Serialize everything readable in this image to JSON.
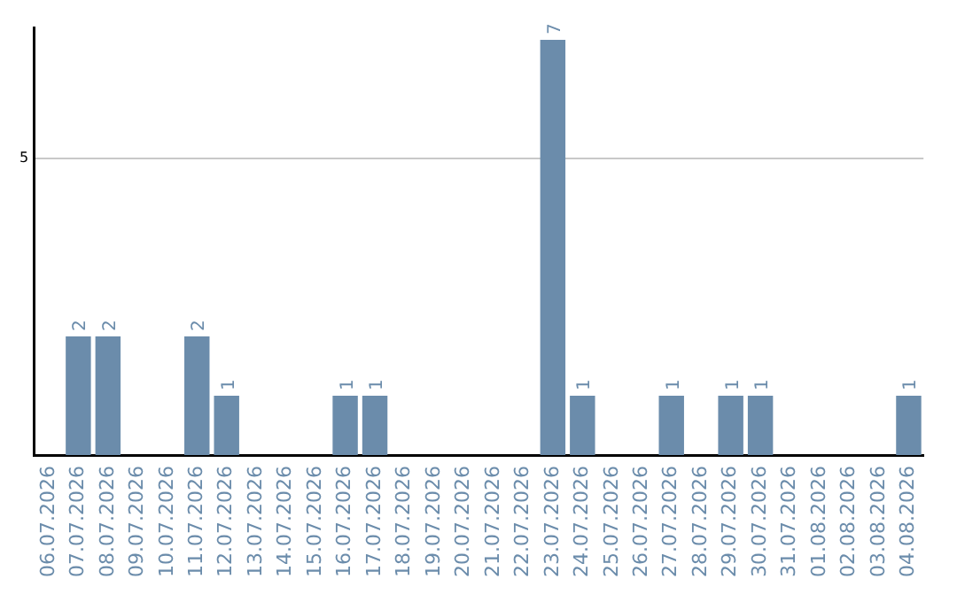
{
  "chart_data": {
    "type": "bar",
    "categories": [
      "06.07.2026",
      "07.07.2026",
      "08.07.2026",
      "09.07.2026",
      "10.07.2026",
      "11.07.2026",
      "12.07.2026",
      "13.07.2026",
      "14.07.2026",
      "15.07.2026",
      "16.07.2026",
      "17.07.2026",
      "18.07.2026",
      "19.07.2026",
      "20.07.2026",
      "21.07.2026",
      "22.07.2026",
      "23.07.2026",
      "24.07.2026",
      "25.07.2026",
      "26.07.2026",
      "27.07.2026",
      "28.07.2026",
      "29.07.2026",
      "30.07.2026",
      "31.07.2026",
      "01.08.2026",
      "02.08.2026",
      "03.08.2026",
      "04.08.2026"
    ],
    "values": [
      0,
      2,
      2,
      0,
      0,
      2,
      1,
      0,
      0,
      0,
      1,
      1,
      0,
      0,
      0,
      0,
      0,
      7,
      1,
      0,
      0,
      1,
      0,
      1,
      1,
      0,
      0,
      0,
      0,
      1
    ],
    "value_labels": [
      null,
      "2",
      "2",
      null,
      null,
      "2",
      "1",
      null,
      null,
      null,
      "1",
      "1",
      null,
      null,
      null,
      null,
      null,
      "7",
      "1",
      null,
      null,
      "1",
      null,
      "1",
      "1",
      null,
      null,
      null,
      null,
      "1"
    ],
    "color": "#6b8cab",
    "ylim": [
      0,
      7.2
    ],
    "yticks": [
      5
    ],
    "grid": "y",
    "legend": false
  }
}
